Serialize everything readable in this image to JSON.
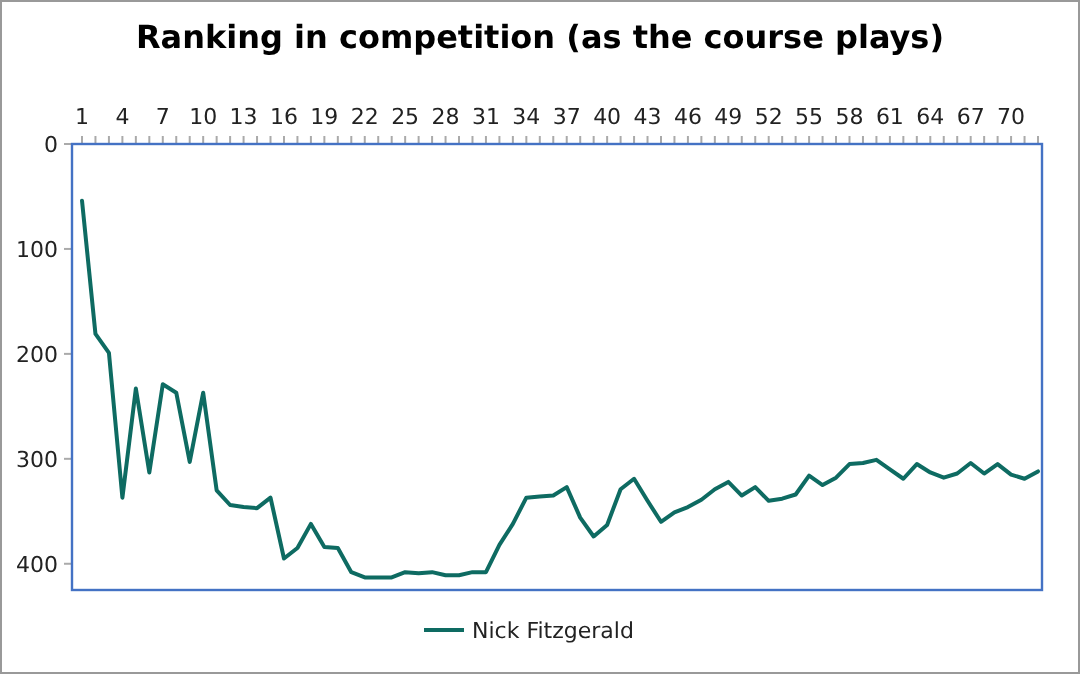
{
  "chart_data": {
    "type": "line",
    "title": "Ranking in competition (as the course plays)",
    "categories": [
      "1",
      null,
      null,
      "4",
      null,
      null,
      "7",
      null,
      null,
      "10",
      null,
      null,
      "13",
      null,
      null,
      "16",
      null,
      null,
      "19",
      null,
      null,
      "22",
      null,
      null,
      "25",
      null,
      null,
      "28",
      null,
      null,
      "31",
      null,
      null,
      "34",
      null,
      null,
      "37",
      null,
      null,
      "40",
      null,
      null,
      "43",
      null,
      null,
      "46",
      null,
      null,
      "49",
      null,
      null,
      "52",
      null,
      null,
      "55",
      null,
      null,
      "58",
      null,
      null,
      "61",
      null,
      null,
      "64",
      null,
      null,
      "67",
      null,
      null,
      "70",
      null,
      null
    ],
    "series": [
      {
        "name": "Nick Fitzgerald",
        "color": "#0e6b62",
        "values": [
          54,
          181,
          199,
          337,
          233,
          313,
          229,
          237,
          303,
          237,
          330,
          344,
          346,
          347,
          337,
          395,
          385,
          362,
          384,
          385,
          408,
          413,
          413,
          413,
          408,
          409,
          408,
          411,
          411,
          408,
          408,
          382,
          362,
          337,
          336,
          335,
          327,
          356,
          374,
          363,
          329,
          319,
          340,
          360,
          351,
          346,
          339,
          329,
          322,
          335,
          327,
          340,
          338,
          334,
          316,
          325,
          318,
          305,
          304,
          301,
          310,
          319,
          305,
          313,
          318,
          314,
          304,
          314,
          305,
          315,
          319,
          312
        ]
      }
    ],
    "ylim": [
      425,
      0
    ],
    "yticks": [
      0,
      100,
      200,
      300,
      400
    ],
    "grid": false,
    "legend": "bottom",
    "marker": "none",
    "line_style": "solid"
  }
}
